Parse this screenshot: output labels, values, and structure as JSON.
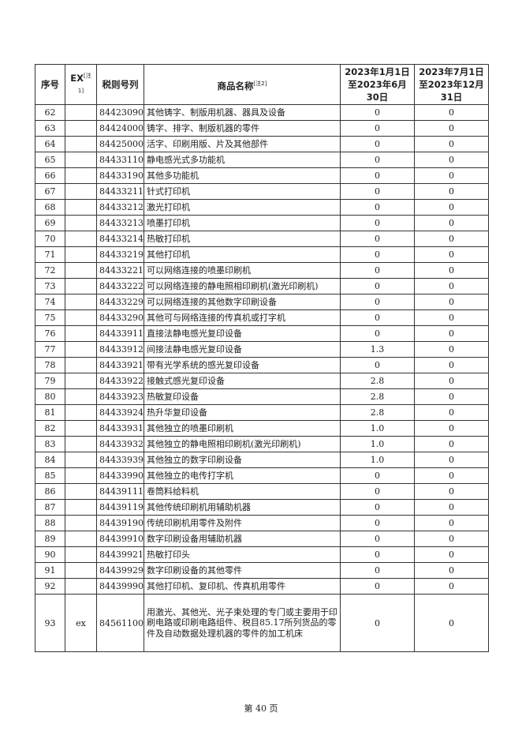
{
  "header": {
    "seq": "序号",
    "ex": "EX",
    "ex_note": "[注1]",
    "code": "税则号列",
    "name": "商品名称",
    "name_note": "[注2]",
    "period1": "2023年1月1日至2023年6月30日",
    "period2": "2023年7月1日至2023年12月31日"
  },
  "rows": [
    [
      "62",
      "",
      "84423090",
      "其他铸字、制版用机器、器具及设备",
      "0",
      "0"
    ],
    [
      "63",
      "",
      "84424000",
      "铸字、排字、制版机器的零件",
      "0",
      "0"
    ],
    [
      "64",
      "",
      "84425000",
      "活字、印刷用版、片及其他部件",
      "0",
      "0"
    ],
    [
      "65",
      "",
      "84433110",
      "静电感光式多功能机",
      "0",
      "0"
    ],
    [
      "66",
      "",
      "84433190",
      "其他多功能机",
      "0",
      "0"
    ],
    [
      "67",
      "",
      "84433211",
      "针式打印机",
      "0",
      "0"
    ],
    [
      "68",
      "",
      "84433212",
      "激光打印机",
      "0",
      "0"
    ],
    [
      "69",
      "",
      "84433213",
      "喷墨打印机",
      "0",
      "0"
    ],
    [
      "70",
      "",
      "84433214",
      "热敏打印机",
      "0",
      "0"
    ],
    [
      "71",
      "",
      "84433219",
      "其他打印机",
      "0",
      "0"
    ],
    [
      "72",
      "",
      "84433221",
      "可以网络连接的喷墨印刷机",
      "0",
      "0"
    ],
    [
      "73",
      "",
      "84433222",
      "可以网络连接的静电照相印刷机(激光印刷机)",
      "0",
      "0"
    ],
    [
      "74",
      "",
      "84433229",
      "可以网络连接的其他数字印刷设备",
      "0",
      "0"
    ],
    [
      "75",
      "",
      "84433290",
      "其他可与网络连接的传真机或打字机",
      "0",
      "0"
    ],
    [
      "76",
      "",
      "84433911",
      "直接法静电感光复印设备",
      "0",
      "0"
    ],
    [
      "77",
      "",
      "84433912",
      "间接法静电感光复印设备",
      "1.3",
      "0"
    ],
    [
      "78",
      "",
      "84433921",
      "带有光学系统的感光复印设备",
      "0",
      "0"
    ],
    [
      "79",
      "",
      "84433922",
      "接触式感光复印设备",
      "2.8",
      "0"
    ],
    [
      "80",
      "",
      "84433923",
      "热敏复印设备",
      "2.8",
      "0"
    ],
    [
      "81",
      "",
      "84433924",
      "热升华复印设备",
      "2.8",
      "0"
    ],
    [
      "82",
      "",
      "84433931",
      "其他独立的喷墨印刷机",
      "1.0",
      "0"
    ],
    [
      "83",
      "",
      "84433932",
      "其他独立的静电照相印刷机(激光印刷机)",
      "1.0",
      "0"
    ],
    [
      "84",
      "",
      "84433939",
      "其他独立的数字印刷设备",
      "1.0",
      "0"
    ],
    [
      "85",
      "",
      "84433990",
      "其他独立的电传打字机",
      "0",
      "0"
    ],
    [
      "86",
      "",
      "84439111",
      "卷筒料给料机",
      "0",
      "0"
    ],
    [
      "87",
      "",
      "84439119",
      "其他传统印刷机用辅助机器",
      "0",
      "0"
    ],
    [
      "88",
      "",
      "84439190",
      "传统印刷机用零件及附件",
      "0",
      "0"
    ],
    [
      "89",
      "",
      "84439910",
      "数字印刷设备用辅助机器",
      "0",
      "0"
    ],
    [
      "90",
      "",
      "84439921",
      "热敏打印头",
      "0",
      "0"
    ],
    [
      "91",
      "",
      "84439929",
      "数字印刷设备的其他零件",
      "0",
      "0"
    ],
    [
      "92",
      "",
      "84439990",
      "其他打印机、复印机、传真机用零件",
      "0",
      "0"
    ],
    [
      "93",
      "ex",
      "84561100",
      "用激光、其他光、光子束处理的专门或主要用于印刷电路或印刷电路组件、税目85.17所列货品的零件及自动数据处理机器的零件的加工机床",
      "0",
      "0"
    ]
  ],
  "footer": "第 40 页"
}
